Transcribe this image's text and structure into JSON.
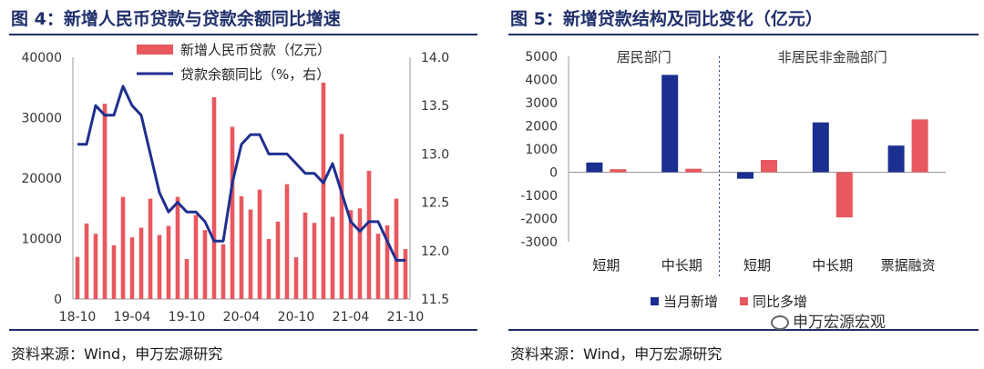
{
  "left": {
    "title": "图 4：新增人民币贷款与贷款余额同比增速",
    "source": "资料来源：Wind，申万宏源研究",
    "chart_data": {
      "type": "bar+line",
      "categories": [
        "18-10",
        "18-11",
        "18-12",
        "19-01",
        "19-02",
        "19-03",
        "19-04",
        "19-05",
        "19-06",
        "19-07",
        "19-08",
        "19-09",
        "19-10",
        "19-11",
        "19-12",
        "20-01",
        "20-02",
        "20-03",
        "20-04",
        "20-05",
        "20-06",
        "20-07",
        "20-08",
        "20-09",
        "20-10",
        "20-11",
        "20-12",
        "21-01",
        "21-02",
        "21-03",
        "21-04",
        "21-05",
        "21-06",
        "21-07",
        "21-08",
        "21-09",
        "21-10"
      ],
      "x_tick_labels": [
        "18-10",
        "19-04",
        "19-10",
        "20-04",
        "20-10",
        "21-04",
        "21-10"
      ],
      "series": [
        {
          "name": "新增人民币贷款（亿元）",
          "axis": "left",
          "color": "#e8585f",
          "values": [
            6970,
            12500,
            10800,
            32300,
            8900,
            16900,
            10200,
            11800,
            16600,
            10600,
            12100,
            16900,
            6613,
            13900,
            11400,
            33400,
            9057,
            28500,
            17000,
            14800,
            18100,
            9927,
            12800,
            19000,
            6898,
            14300,
            12600,
            35800,
            13600,
            27300,
            14700,
            15000,
            21200,
            10800,
            12200,
            16600,
            8262
          ]
        },
        {
          "name": "贷款余额同比（%，右）",
          "axis": "right",
          "color": "#1f2f8f",
          "values": [
            13.1,
            13.1,
            13.5,
            13.4,
            13.4,
            13.7,
            13.5,
            13.4,
            13.0,
            12.6,
            12.4,
            12.5,
            12.4,
            12.4,
            12.3,
            12.1,
            12.1,
            12.7,
            13.1,
            13.2,
            13.2,
            13.0,
            13.0,
            13.0,
            12.9,
            12.8,
            12.8,
            12.7,
            12.9,
            12.6,
            12.3,
            12.2,
            12.3,
            12.3,
            12.1,
            11.9,
            11.9
          ]
        }
      ],
      "y_left": {
        "min": 0,
        "max": 40000,
        "ticks": [
          0,
          10000,
          20000,
          30000,
          40000
        ]
      },
      "y_right": {
        "min": 11.5,
        "max": 14.0,
        "ticks": [
          "11.5",
          "12.0",
          "12.5",
          "13.0",
          "13.5",
          "14.0"
        ]
      },
      "legend_position": "top-center"
    }
  },
  "right": {
    "title": "图 5：新增贷款结构及同比变化（亿元）",
    "source": "资料来源：Wind，申万宏源研究",
    "watermark": "申万宏源宏观",
    "chart_data": {
      "type": "bar",
      "categories": [
        "短期",
        "中长期",
        "短期",
        "中长期",
        "票据融资"
      ],
      "groups": [
        {
          "label": "居民部门",
          "span": [
            0,
            1
          ]
        },
        {
          "label": "非居民非金融部门",
          "span": [
            2,
            4
          ]
        }
      ],
      "series": [
        {
          "name": "当月新增",
          "color": "#1a2f8f",
          "values": [
            420,
            4200,
            -280,
            2150,
            1150
          ]
        },
        {
          "name": "同比多增",
          "color": "#e8585f",
          "values": [
            130,
            150,
            530,
            -1950,
            2280
          ]
        }
      ],
      "y": {
        "min": -3000,
        "max": 5000,
        "ticks": [
          -3000,
          -2000,
          -1000,
          0,
          1000,
          2000,
          3000,
          4000,
          5000
        ]
      },
      "legend_position": "bottom-center"
    }
  }
}
